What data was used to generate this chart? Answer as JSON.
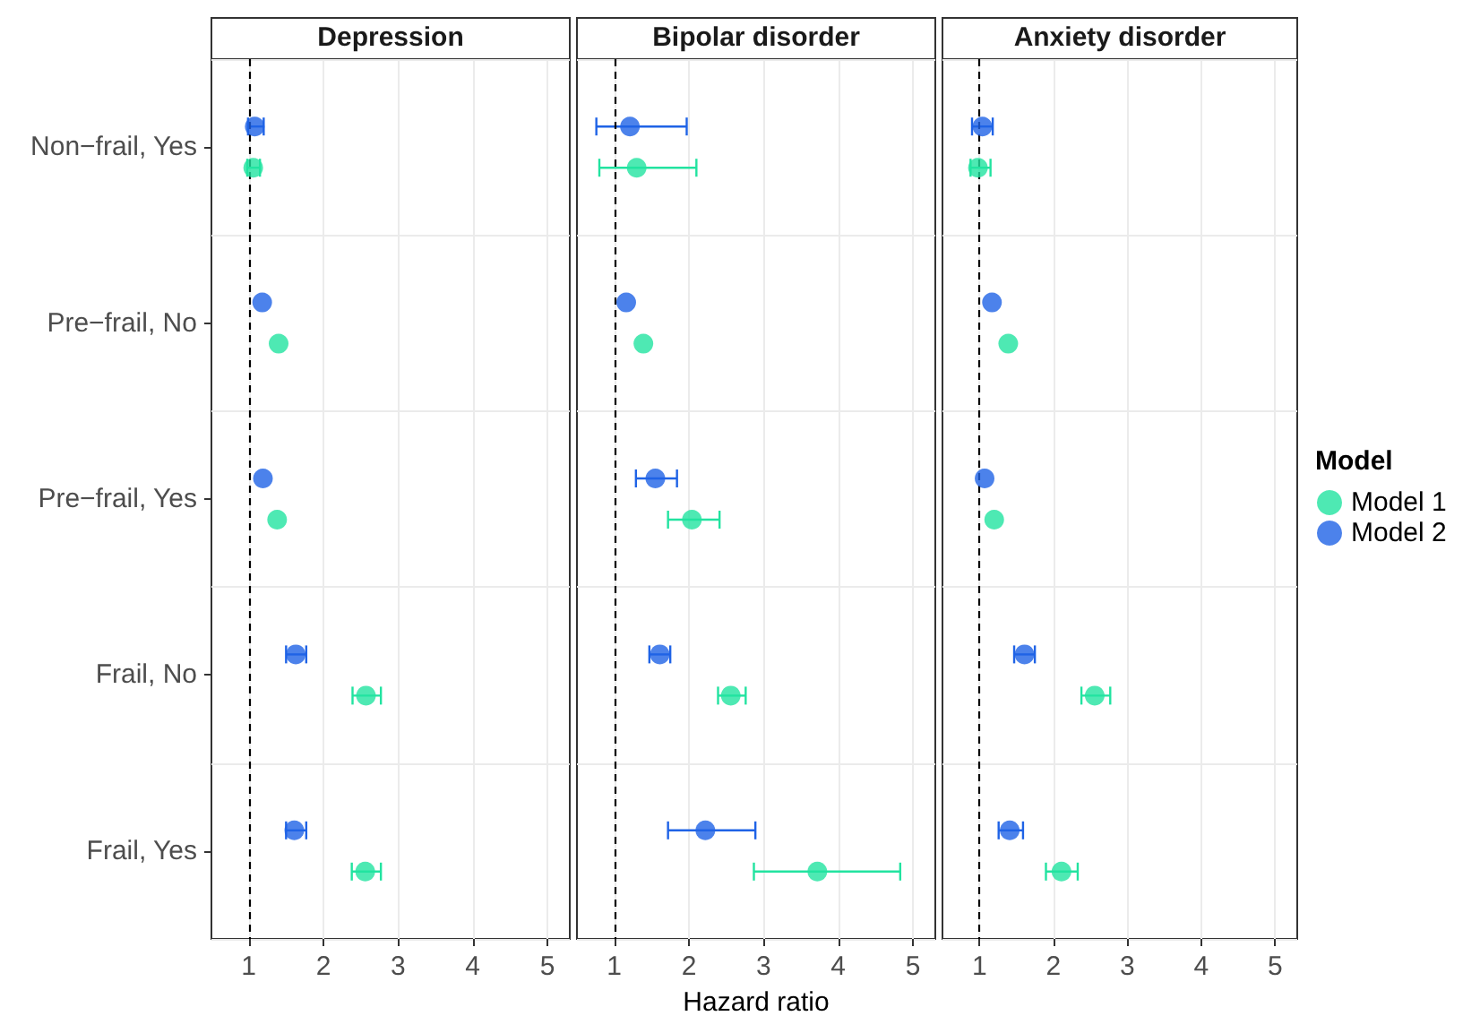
{
  "chart_data": [
    {
      "type": "scatter",
      "title": "Depression",
      "orientation": "horizontal",
      "categories": [
        "Non−frail, Yes",
        "Pre−frail, No",
        "Pre−frail, Yes",
        "Frail, No",
        "Frail, Yes"
      ],
      "xlim": [
        0.5,
        5.3
      ],
      "xticks": [
        1,
        2,
        3,
        4,
        5
      ],
      "grid": true,
      "marker": "circle",
      "tick_labels": "xy",
      "ref_lines": [
        {
          "axis": "x",
          "value": 1,
          "color": "#000000",
          "line_style": "dashed"
        }
      ],
      "series": [
        {
          "color": "#22e3a0",
          "values": [
            1.06,
            1.4,
            1.38,
            2.57,
            2.56
          ],
          "errors": [
            [
              0.98,
              1.15
            ],
            null,
            null,
            [
              2.39,
              2.77
            ],
            [
              2.38,
              2.77
            ]
          ]
        },
        {
          "color": "#1f63e6",
          "values": [
            1.08,
            1.18,
            1.19,
            1.63,
            1.61
          ],
          "errors": [
            [
              0.99,
              1.2
            ],
            null,
            null,
            [
              1.5,
              1.77
            ],
            [
              1.5,
              1.77
            ]
          ]
        }
      ]
    },
    {
      "type": "scatter",
      "title": "Bipolar disorder",
      "xlabel": "Hazard ratio",
      "orientation": "horizontal",
      "categories": [
        null,
        null,
        null,
        null,
        null
      ],
      "xlim": [
        0.5,
        5.3
      ],
      "xticks": [
        1,
        2,
        3,
        4,
        5
      ],
      "grid": true,
      "marker": "circle",
      "tick_labels": "x",
      "ref_lines": [
        {
          "axis": "x",
          "value": 1,
          "color": "#000000",
          "line_style": "dashed"
        }
      ],
      "series": [
        {
          "color": "#22e3a0",
          "values": [
            1.3,
            1.39,
            2.04,
            2.56,
            3.72
          ],
          "errors": [
            [
              0.8,
              2.1
            ],
            null,
            [
              1.72,
              2.41
            ],
            [
              2.39,
              2.76
            ],
            [
              2.87,
              4.83
            ]
          ]
        },
        {
          "color": "#1f63e6",
          "values": [
            1.21,
            1.16,
            1.55,
            1.61,
            2.22
          ],
          "errors": [
            [
              0.76,
              1.97
            ],
            null,
            [
              1.29,
              1.84
            ],
            [
              1.47,
              1.75
            ],
            [
              1.72,
              2.89
            ]
          ]
        }
      ]
    },
    {
      "type": "scatter",
      "title": "Anxiety disorder",
      "legend": "right",
      "legend_title": "Model",
      "orientation": "horizontal",
      "categories": [
        null,
        null,
        null,
        null,
        null
      ],
      "xlim": [
        0.5,
        5.3
      ],
      "xticks": [
        1,
        2,
        3,
        4,
        5
      ],
      "grid": true,
      "marker": "circle",
      "tick_labels": "x",
      "ref_lines": [
        {
          "axis": "x",
          "value": 1,
          "color": "#000000",
          "line_style": "dashed"
        }
      ],
      "series": [
        {
          "name": "Model 1",
          "color": "#22e3a0",
          "values": [
            0.98,
            1.39,
            1.2,
            2.56,
            2.11
          ],
          "errors": [
            [
              0.88,
              1.15
            ],
            null,
            null,
            [
              2.38,
              2.77
            ],
            [
              1.9,
              2.33
            ]
          ]
        },
        {
          "name": "Model 2",
          "color": "#1f63e6",
          "values": [
            1.04,
            1.17,
            1.07,
            1.61,
            1.41
          ],
          "errors": [
            [
              0.9,
              1.18
            ],
            null,
            null,
            [
              1.47,
              1.75
            ],
            [
              1.26,
              1.59
            ]
          ]
        }
      ]
    }
  ]
}
